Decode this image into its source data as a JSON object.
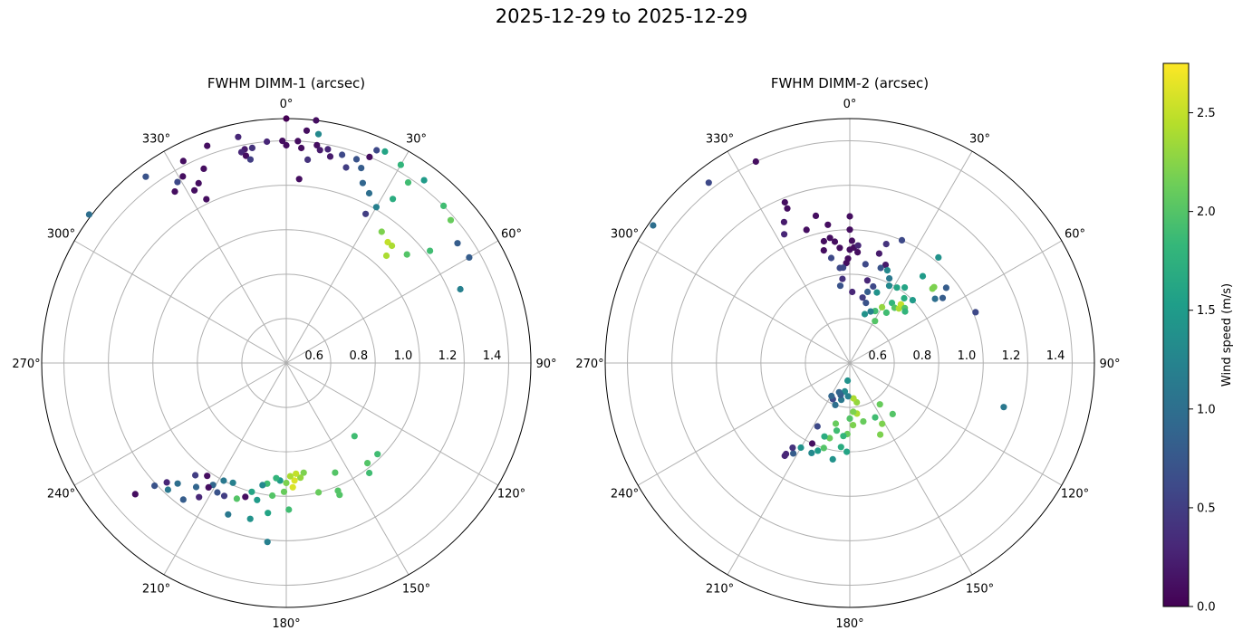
{
  "title": "2025-12-29 to 2025-12-29",
  "colorbar": {
    "label": "Wind speed (m/s)",
    "min": 0.0,
    "max": 2.75,
    "colormap": [
      "#440154",
      "#482878",
      "#3e4a89",
      "#31688e",
      "#26828e",
      "#1f9e89",
      "#35b779",
      "#6ece58",
      "#b5de2b",
      "#fde725"
    ],
    "ticks": [
      "0.0",
      "0.5",
      "1.0",
      "1.5",
      "2.0",
      "2.5"
    ]
  },
  "chart_data": [
    {
      "type": "scatter",
      "projection": "polar",
      "title": "FWHM DIMM-1 (arcsec)",
      "theta_direction": "clockwise",
      "theta_zero": "N",
      "rlim": [
        0.4,
        1.5
      ],
      "radial_ticks": [
        "0.6",
        "0.8",
        "1.0",
        "1.2",
        "1.4"
      ],
      "angle_ticks": [
        "0°",
        "30°",
        "60°",
        "90°",
        "120°",
        "150°",
        "180°",
        "210°",
        "240°",
        "270°",
        "300°",
        "330°"
      ],
      "grid": true,
      "points": [
        {
          "theta": 0,
          "r": 1.5,
          "c": 0.0
        },
        {
          "theta": 5,
          "r": 1.45,
          "c": 0.1
        },
        {
          "theta": 7,
          "r": 1.5,
          "c": 0.1
        },
        {
          "theta": 3,
          "r": 1.4,
          "c": 0.1
        },
        {
          "theta": 4,
          "r": 1.37,
          "c": 0.1
        },
        {
          "theta": 8,
          "r": 1.39,
          "c": 0.1
        },
        {
          "theta": 9,
          "r": 1.37,
          "c": 0.2
        },
        {
          "theta": 11,
          "r": 1.38,
          "c": 0.3
        },
        {
          "theta": 6,
          "r": 1.32,
          "c": 0.4
        },
        {
          "theta": 12,
          "r": 1.35,
          "c": 0.2
        },
        {
          "theta": 8,
          "r": 1.44,
          "c": 1.3
        },
        {
          "theta": 4,
          "r": 1.23,
          "c": 0.1
        },
        {
          "theta": 0,
          "r": 1.38,
          "c": 0.1
        },
        {
          "theta": -1,
          "r": 1.4,
          "c": 0.1
        },
        {
          "theta": 15,
          "r": 1.37,
          "c": 0.6
        },
        {
          "theta": 17,
          "r": 1.32,
          "c": 0.5
        },
        {
          "theta": 19,
          "r": 1.37,
          "c": 0.7
        },
        {
          "theta": 21,
          "r": 1.34,
          "c": 0.8
        },
        {
          "theta": 22,
          "r": 1.4,
          "c": 0.1
        },
        {
          "theta": 23,
          "r": 1.44,
          "c": 0.6
        },
        {
          "theta": 25,
          "r": 1.45,
          "c": 1.6
        },
        {
          "theta": 23,
          "r": 1.28,
          "c": 0.9
        },
        {
          "theta": 26,
          "r": 1.25,
          "c": 1.0
        },
        {
          "theta": 30,
          "r": 1.43,
          "c": 1.8
        },
        {
          "theta": 34,
          "r": 1.38,
          "c": 1.9
        },
        {
          "theta": 37,
          "r": 1.43,
          "c": 1.5
        },
        {
          "theta": 33,
          "r": 1.28,
          "c": 1.7
        },
        {
          "theta": 30,
          "r": 1.21,
          "c": 1.2
        },
        {
          "theta": 28,
          "r": 1.16,
          "c": 0.5
        },
        {
          "theta": 36,
          "r": 1.13,
          "c": 2.2
        },
        {
          "theta": 40,
          "r": 1.11,
          "c": 2.5
        },
        {
          "theta": 42,
          "r": 1.11,
          "c": 2.4
        },
        {
          "theta": 43,
          "r": 1.06,
          "c": 2.4
        },
        {
          "theta": 48,
          "r": 1.13,
          "c": 2.0
        },
        {
          "theta": 45,
          "r": 1.4,
          "c": 1.9
        },
        {
          "theta": 49,
          "r": 1.38,
          "c": 2.1
        },
        {
          "theta": 55,
          "r": 1.34,
          "c": 0.8
        },
        {
          "theta": 60,
          "r": 1.35,
          "c": 0.8
        },
        {
          "theta": 52,
          "r": 1.22,
          "c": 1.9
        },
        {
          "theta": 67,
          "r": 1.25,
          "c": 1.2
        },
        {
          "theta": -5,
          "r": 1.4,
          "c": 0.3
        },
        {
          "theta": -9,
          "r": 1.38,
          "c": 0.4
        },
        {
          "theta": -11,
          "r": 1.38,
          "c": 0.2
        },
        {
          "theta": -12,
          "r": 1.37,
          "c": 0.3
        },
        {
          "theta": -11,
          "r": 1.35,
          "c": 0.1
        },
        {
          "theta": -10,
          "r": 1.33,
          "c": 0.5
        },
        {
          "theta": -12,
          "r": 1.44,
          "c": 0.3
        },
        {
          "theta": -20,
          "r": 1.44,
          "c": 0.1
        },
        {
          "theta": -23,
          "r": 1.35,
          "c": 0.1
        },
        {
          "theta": -26,
          "r": 1.3,
          "c": 0.1
        },
        {
          "theta": -28,
          "r": 1.28,
          "c": 0.1
        },
        {
          "theta": -29,
          "r": 1.36,
          "c": 0.1
        },
        {
          "theta": -31,
          "r": 1.35,
          "c": 0.6
        },
        {
          "theta": -33,
          "r": 1.32,
          "c": 0.1
        },
        {
          "theta": -37,
          "r": 1.45,
          "c": 0.7
        },
        {
          "theta": -53,
          "r": 1.51,
          "c": 1.0
        },
        {
          "theta": -27,
          "r": 1.42,
          "c": 0.1
        },
        {
          "theta": -26,
          "r": 1.22,
          "c": 0.1
        },
        {
          "theta": 135,
          "r": 0.98,
          "c": 1.9
        },
        {
          "theta": 137,
          "r": 0.85,
          "c": 1.9
        },
        {
          "theta": 141,
          "r": 0.98,
          "c": 2.0
        },
        {
          "theta": 143,
          "r": 1.02,
          "c": 1.9
        },
        {
          "theta": 156,
          "r": 0.94,
          "c": 2.0
        },
        {
          "theta": 158,
          "r": 1.02,
          "c": 2.0
        },
        {
          "theta": 158,
          "r": 1.04,
          "c": 2.0
        },
        {
          "theta": 166,
          "r": 1.0,
          "c": 2.1
        },
        {
          "theta": 171,
          "r": 0.9,
          "c": 2.2
        },
        {
          "theta": 173,
          "r": 0.92,
          "c": 2.3
        },
        {
          "theta": 175,
          "r": 0.9,
          "c": 2.5
        },
        {
          "theta": 176,
          "r": 0.93,
          "c": 2.6
        },
        {
          "theta": 177,
          "r": 0.96,
          "c": 2.6
        },
        {
          "theta": 178,
          "r": 0.91,
          "c": 2.4
        },
        {
          "theta": 180,
          "r": 0.94,
          "c": 2.2
        },
        {
          "theta": 181,
          "r": 0.98,
          "c": 2.1
        },
        {
          "theta": 179,
          "r": 1.06,
          "c": 1.9
        },
        {
          "theta": 183,
          "r": 0.93,
          "c": 1.5
        },
        {
          "theta": 185,
          "r": 0.92,
          "c": 1.8
        },
        {
          "theta": 186,
          "r": 1.0,
          "c": 2.0
        },
        {
          "theta": 187,
          "r": 1.08,
          "c": 1.6
        },
        {
          "theta": 186,
          "r": 1.21,
          "c": 1.2
        },
        {
          "theta": 189,
          "r": 0.95,
          "c": 1.9
        },
        {
          "theta": 191,
          "r": 0.96,
          "c": 1.3
        },
        {
          "theta": 192,
          "r": 1.03,
          "c": 1.5
        },
        {
          "theta": 193,
          "r": 1.12,
          "c": 1.4
        },
        {
          "theta": 195,
          "r": 1.0,
          "c": 1.6
        },
        {
          "theta": 197,
          "r": 1.03,
          "c": 0.1
        },
        {
          "theta": 200,
          "r": 1.05,
          "c": 2.0
        },
        {
          "theta": 201,
          "r": 1.13,
          "c": 1.1
        },
        {
          "theta": 204,
          "r": 0.99,
          "c": 1.2
        },
        {
          "theta": 205,
          "r": 1.06,
          "c": 0.5
        },
        {
          "theta": 208,
          "r": 1.0,
          "c": 1.1
        },
        {
          "theta": 208,
          "r": 1.06,
          "c": 0.7
        },
        {
          "theta": 211,
          "r": 1.04,
          "c": 0.9
        },
        {
          "theta": 212,
          "r": 1.06,
          "c": 0.1
        },
        {
          "theta": 213,
          "r": 1.12,
          "c": 0.3
        },
        {
          "theta": 215,
          "r": 1.02,
          "c": 0.1
        },
        {
          "theta": 216,
          "r": 1.09,
          "c": 0.9
        },
        {
          "theta": 217,
          "r": 1.17,
          "c": 0.8
        },
        {
          "theta": 219,
          "r": 1.05,
          "c": 0.5
        },
        {
          "theta": 222,
          "r": 1.13,
          "c": 1.0
        },
        {
          "theta": 223,
          "r": 1.18,
          "c": 1.1
        },
        {
          "theta": 225,
          "r": 1.16,
          "c": 0.3
        },
        {
          "theta": 227,
          "r": 1.21,
          "c": 0.7
        },
        {
          "theta": 229,
          "r": 1.3,
          "c": 0.1
        }
      ]
    },
    {
      "type": "scatter",
      "projection": "polar",
      "title": "FWHM DIMM-2 (arcsec)",
      "theta_direction": "clockwise",
      "theta_zero": "N",
      "rlim": [
        0.4,
        1.5
      ],
      "radial_ticks": [
        "0.6",
        "0.8",
        "1.0",
        "1.2",
        "1.4"
      ],
      "angle_ticks": [
        "0°",
        "30°",
        "60°",
        "90°",
        "120°",
        "150°",
        "180°",
        "210°",
        "240°",
        "270°",
        "300°",
        "330°"
      ],
      "grid": true,
      "points": [
        {
          "theta": -25,
          "r": 1.4,
          "c": 0.1
        },
        {
          "theta": -38,
          "r": 1.43,
          "c": 0.6
        },
        {
          "theta": -55,
          "r": 1.48,
          "c": 1.0
        },
        {
          "theta": -22,
          "r": 1.18,
          "c": 0.1
        },
        {
          "theta": -22,
          "r": 1.15,
          "c": 0.1
        },
        {
          "theta": -25,
          "r": 1.1,
          "c": 0.2
        },
        {
          "theta": -27,
          "r": 1.05,
          "c": 0.3
        },
        {
          "theta": -18,
          "r": 1.03,
          "c": 0.1
        },
        {
          "theta": -13,
          "r": 1.08,
          "c": 0.1
        },
        {
          "theta": -9,
          "r": 1.03,
          "c": 0.1
        },
        {
          "theta": 0,
          "r": 1.06,
          "c": 0.1
        },
        {
          "theta": 0,
          "r": 1.0,
          "c": 0.1
        },
        {
          "theta": 1,
          "r": 0.95,
          "c": 0.1
        },
        {
          "theta": 2,
          "r": 0.92,
          "c": 0.1
        },
        {
          "theta": 0,
          "r": 0.91,
          "c": 0.1
        },
        {
          "theta": 4,
          "r": 0.93,
          "c": 0.3
        },
        {
          "theta": 4,
          "r": 0.9,
          "c": 0.1
        },
        {
          "theta": -5,
          "r": 0.92,
          "c": 0.1
        },
        {
          "theta": -7,
          "r": 0.95,
          "c": 0.1
        },
        {
          "theta": -9,
          "r": 0.97,
          "c": 0.1
        },
        {
          "theta": -12,
          "r": 0.96,
          "c": 0.1
        },
        {
          "theta": -13,
          "r": 0.92,
          "c": 0.1
        },
        {
          "theta": -2,
          "r": 0.85,
          "c": 0.1
        },
        {
          "theta": -1,
          "r": 0.87,
          "c": 0.1
        },
        {
          "theta": -4,
          "r": 0.83,
          "c": 0.6
        },
        {
          "theta": -6,
          "r": 0.83,
          "c": 0.6
        },
        {
          "theta": -10,
          "r": 0.88,
          "c": 0.6
        },
        {
          "theta": -5,
          "r": 0.78,
          "c": 0.4
        },
        {
          "theta": -7,
          "r": 0.75,
          "c": 0.7
        },
        {
          "theta": 2,
          "r": 0.72,
          "c": 0.3
        },
        {
          "theta": 9,
          "r": 0.85,
          "c": 0.6
        },
        {
          "theta": 12,
          "r": 0.78,
          "c": 0.3
        },
        {
          "theta": 15,
          "r": 0.91,
          "c": 0.2
        },
        {
          "theta": 17,
          "r": 0.96,
          "c": 0.4
        },
        {
          "theta": 23,
          "r": 1.0,
          "c": 0.6
        },
        {
          "theta": 20,
          "r": 0.87,
          "c": 0.2
        },
        {
          "theta": 18,
          "r": 0.85,
          "c": 0.7
        },
        {
          "theta": 22,
          "r": 0.85,
          "c": 1.3
        },
        {
          "theta": 25,
          "r": 0.82,
          "c": 1.1
        },
        {
          "theta": 27,
          "r": 0.79,
          "c": 1.3
        },
        {
          "theta": 17,
          "r": 0.76,
          "c": 0.6
        },
        {
          "theta": 14,
          "r": 0.73,
          "c": 0.8
        },
        {
          "theta": 21,
          "r": 0.74,
          "c": 1.4
        },
        {
          "theta": 15,
          "r": 0.68,
          "c": 0.7
        },
        {
          "theta": 11,
          "r": 0.7,
          "c": 0.5
        },
        {
          "theta": 32,
          "r": 0.8,
          "c": 1.6
        },
        {
          "theta": 36,
          "r": 0.82,
          "c": 1.6
        },
        {
          "theta": 40,
          "r": 0.78,
          "c": 1.7
        },
        {
          "theta": 35,
          "r": 0.73,
          "c": 1.8
        },
        {
          "theta": 39,
          "r": 0.72,
          "c": 2.0
        },
        {
          "theta": 45,
          "r": 0.8,
          "c": 1.5
        },
        {
          "theta": 42,
          "r": 0.73,
          "c": 2.4
        },
        {
          "theta": 41,
          "r": 0.75,
          "c": 2.5
        },
        {
          "theta": 45,
          "r": 0.75,
          "c": 2.0
        },
        {
          "theta": 47,
          "r": 0.74,
          "c": 1.8
        },
        {
          "theta": 36,
          "r": 0.68,
          "c": 1.9
        },
        {
          "theta": 30,
          "r": 0.69,
          "c": 2.3
        },
        {
          "theta": 26,
          "r": 0.66,
          "c": 1.9
        },
        {
          "theta": 31,
          "r": 0.62,
          "c": 2.0
        },
        {
          "theta": 22,
          "r": 0.65,
          "c": 1.2
        },
        {
          "theta": 17,
          "r": 0.63,
          "c": 1.4
        },
        {
          "theta": 40,
          "r": 0.91,
          "c": 1.5
        },
        {
          "theta": 48,
          "r": 0.9,
          "c": 2.2
        },
        {
          "theta": 48,
          "r": 0.91,
          "c": 2.2
        },
        {
          "theta": 52,
          "r": 0.95,
          "c": 0.8
        },
        {
          "theta": 55,
          "r": 0.91,
          "c": 0.8
        },
        {
          "theta": 53,
          "r": 0.88,
          "c": 1.0
        },
        {
          "theta": 40,
          "r": 1.02,
          "c": 1.4
        },
        {
          "theta": 68,
          "r": 1.01,
          "c": 0.6
        },
        {
          "theta": 106,
          "r": 1.12,
          "c": 1.1
        },
        {
          "theta": 140,
          "r": 0.7,
          "c": 2.0
        },
        {
          "theta": 144,
          "r": 0.63,
          "c": 2.1
        },
        {
          "theta": 152,
          "r": 0.71,
          "c": 2.2
        },
        {
          "theta": 155,
          "r": 0.67,
          "c": 1.9
        },
        {
          "theta": 157,
          "r": 0.75,
          "c": 2.2
        },
        {
          "theta": 167,
          "r": 0.67,
          "c": 2.1
        },
        {
          "theta": 170,
          "r": 0.58,
          "c": 2.3
        },
        {
          "theta": 172,
          "r": 0.63,
          "c": 2.4
        },
        {
          "theta": 174,
          "r": 0.56,
          "c": 2.4
        },
        {
          "theta": 176,
          "r": 0.62,
          "c": 2.2
        },
        {
          "theta": 177,
          "r": 0.68,
          "c": 2.2
        },
        {
          "theta": 180,
          "r": 0.65,
          "c": 2.0
        },
        {
          "theta": 182,
          "r": 0.72,
          "c": 2.1
        },
        {
          "theta": 185,
          "r": 0.73,
          "c": 1.8
        },
        {
          "theta": 186,
          "r": 0.78,
          "c": 1.7
        },
        {
          "theta": 182,
          "r": 0.8,
          "c": 1.6
        },
        {
          "theta": 190,
          "r": 0.84,
          "c": 1.4
        },
        {
          "theta": 191,
          "r": 0.71,
          "c": 1.9
        },
        {
          "theta": 193,
          "r": 0.68,
          "c": 2.1
        },
        {
          "theta": 195,
          "r": 0.75,
          "c": 2.1
        },
        {
          "theta": 197,
          "r": 0.8,
          "c": 2.0
        },
        {
          "theta": 199,
          "r": 0.75,
          "c": 1.7
        },
        {
          "theta": 200,
          "r": 0.82,
          "c": 1.5
        },
        {
          "theta": 203,
          "r": 0.84,
          "c": 1.3
        },
        {
          "theta": 205,
          "r": 0.8,
          "c": 0.1
        },
        {
          "theta": 207,
          "r": 0.72,
          "c": 0.6
        },
        {
          "theta": 210,
          "r": 0.84,
          "c": 1.4
        },
        {
          "theta": 212,
          "r": 0.88,
          "c": 0.8
        },
        {
          "theta": 214,
          "r": 0.86,
          "c": 0.4
        },
        {
          "theta": 215,
          "r": 0.9,
          "c": 0.3
        },
        {
          "theta": 215,
          "r": 0.91,
          "c": 0.3
        },
        {
          "theta": 183,
          "r": 0.55,
          "c": 1.2
        },
        {
          "theta": 187,
          "r": 0.48,
          "c": 1.4
        },
        {
          "theta": 190,
          "r": 0.53,
          "c": 1.3
        },
        {
          "theta": 193,
          "r": 0.57,
          "c": 1.1
        },
        {
          "theta": 196,
          "r": 0.55,
          "c": 0.8
        },
        {
          "theta": 199,
          "r": 0.6,
          "c": 1.0
        },
        {
          "theta": 200,
          "r": 0.54,
          "c": 0.9
        },
        {
          "theta": 205,
          "r": 0.58,
          "c": 0.6
        },
        {
          "theta": 209,
          "r": 0.57,
          "c": 0.9
        }
      ]
    }
  ]
}
